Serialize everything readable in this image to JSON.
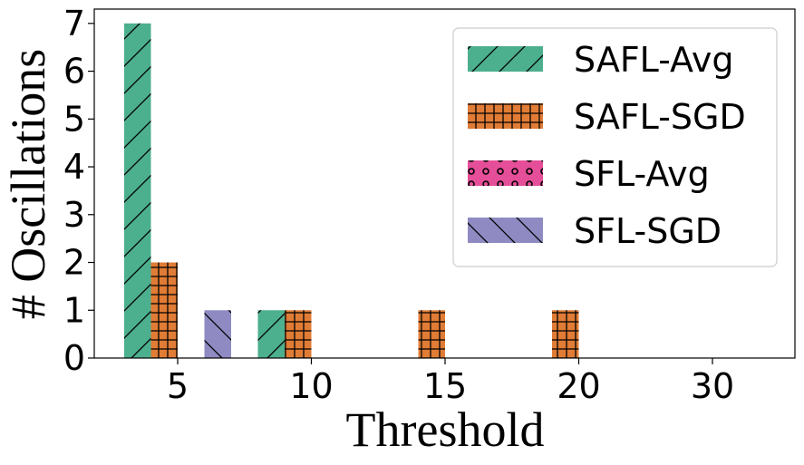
{
  "chart_data": {
    "type": "bar",
    "xlabel": "Threshold",
    "ylabel": "# Oscillations",
    "categories": [
      "5",
      "10",
      "15",
      "20",
      "30"
    ],
    "ylim": [
      0,
      7.3
    ],
    "yticks": [
      0,
      1,
      2,
      3,
      4,
      5,
      6,
      7
    ],
    "grid": false,
    "legend_position": "top-right",
    "series": [
      {
        "name": "SAFL-Avg",
        "values": [
          7,
          1,
          0,
          0,
          0
        ],
        "color": "#4caf8d",
        "pattern": "diagonal-forward"
      },
      {
        "name": "SAFL-SGD",
        "values": [
          2,
          1,
          1,
          1,
          0
        ],
        "color": "#e07c36",
        "pattern": "grid"
      },
      {
        "name": "SFL-Avg",
        "values": [
          0,
          0,
          0,
          0,
          0
        ],
        "color": "#e54e98",
        "pattern": "circles"
      },
      {
        "name": "SFL-SGD",
        "values": [
          1,
          0,
          0,
          0,
          0
        ],
        "color": "#8f8bc2",
        "pattern": "diagonal-back"
      }
    ]
  }
}
